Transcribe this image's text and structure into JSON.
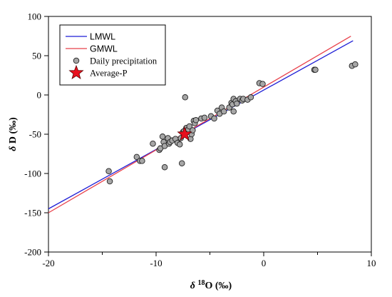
{
  "chart_data": {
    "type": "scatter",
    "xlim": [
      -20,
      10
    ],
    "ylim": [
      -200,
      100
    ],
    "xticks": [
      -20,
      -10,
      0,
      10
    ],
    "xticks_minor": [
      -15,
      -5,
      5
    ],
    "yticks": [
      -200,
      -150,
      -100,
      -50,
      0,
      50,
      100
    ],
    "xlabel": {
      "prefix": "δ ",
      "sup": "18",
      "suffix": "O (‰)"
    },
    "ylabel": "δ  D (‰)",
    "legend_position": "top-left",
    "grid": false,
    "lines": [
      {
        "name": "LMWL",
        "color": "#1f1fd6",
        "x": [
          -20,
          8.3
        ],
        "y": [
          -145,
          69
        ]
      },
      {
        "name": "GMWL",
        "color": "#e8404a",
        "x": [
          -20,
          8.1
        ],
        "y": [
          -150,
          74.8
        ]
      }
    ],
    "series": [
      {
        "name": "Daily precipitation",
        "color": "#a6a6a6",
        "points": [
          [
            -14.4,
            -97
          ],
          [
            -14.3,
            -110
          ],
          [
            -11.8,
            -79
          ],
          [
            -11.5,
            -84
          ],
          [
            -11.3,
            -84
          ],
          [
            -10.3,
            -62
          ],
          [
            -9.7,
            -70
          ],
          [
            -9.6,
            -68
          ],
          [
            -9.4,
            -53
          ],
          [
            -9.3,
            -60
          ],
          [
            -9.2,
            -65
          ],
          [
            -9.2,
            -92
          ],
          [
            -8.9,
            -55
          ],
          [
            -8.8,
            -62
          ],
          [
            -8.7,
            -60
          ],
          [
            -8.5,
            -58
          ],
          [
            -8.2,
            -56
          ],
          [
            -8.0,
            -61
          ],
          [
            -7.8,
            -63
          ],
          [
            -7.7,
            -55
          ],
          [
            -7.6,
            -87
          ],
          [
            -7.5,
            -47
          ],
          [
            -7.4,
            -46
          ],
          [
            -7.3,
            -3
          ],
          [
            -7.2,
            -42
          ],
          [
            -7.0,
            -44
          ],
          [
            -6.9,
            -40
          ],
          [
            -6.8,
            -56
          ],
          [
            -6.7,
            -50
          ],
          [
            -6.6,
            -45
          ],
          [
            -6.5,
            -33
          ],
          [
            -6.4,
            -36
          ],
          [
            -6.3,
            -32
          ],
          [
            -5.8,
            -30
          ],
          [
            -5.5,
            -29
          ],
          [
            -4.9,
            -27
          ],
          [
            -4.6,
            -30
          ],
          [
            -4.3,
            -20
          ],
          [
            -4.1,
            -24
          ],
          [
            -3.9,
            -16
          ],
          [
            -3.7,
            -21
          ],
          [
            -3.2,
            -16
          ],
          [
            -3.0,
            -10
          ],
          [
            -2.9,
            -12
          ],
          [
            -2.8,
            -5
          ],
          [
            -2.8,
            -21
          ],
          [
            -2.6,
            -8
          ],
          [
            -2.5,
            -11
          ],
          [
            -2.2,
            -5
          ],
          [
            -2.0,
            -7
          ],
          [
            -1.9,
            -5
          ],
          [
            -1.5,
            -6
          ],
          [
            -1.2,
            -3
          ],
          [
            -0.4,
            15
          ],
          [
            -0.1,
            14
          ],
          [
            4.7,
            32
          ],
          [
            4.8,
            32
          ],
          [
            8.2,
            37
          ],
          [
            8.5,
            39
          ]
        ]
      },
      {
        "name": "Average-P",
        "color": "#e8101e",
        "marker": "star",
        "points": [
          [
            -7.35,
            -50
          ]
        ]
      }
    ]
  }
}
